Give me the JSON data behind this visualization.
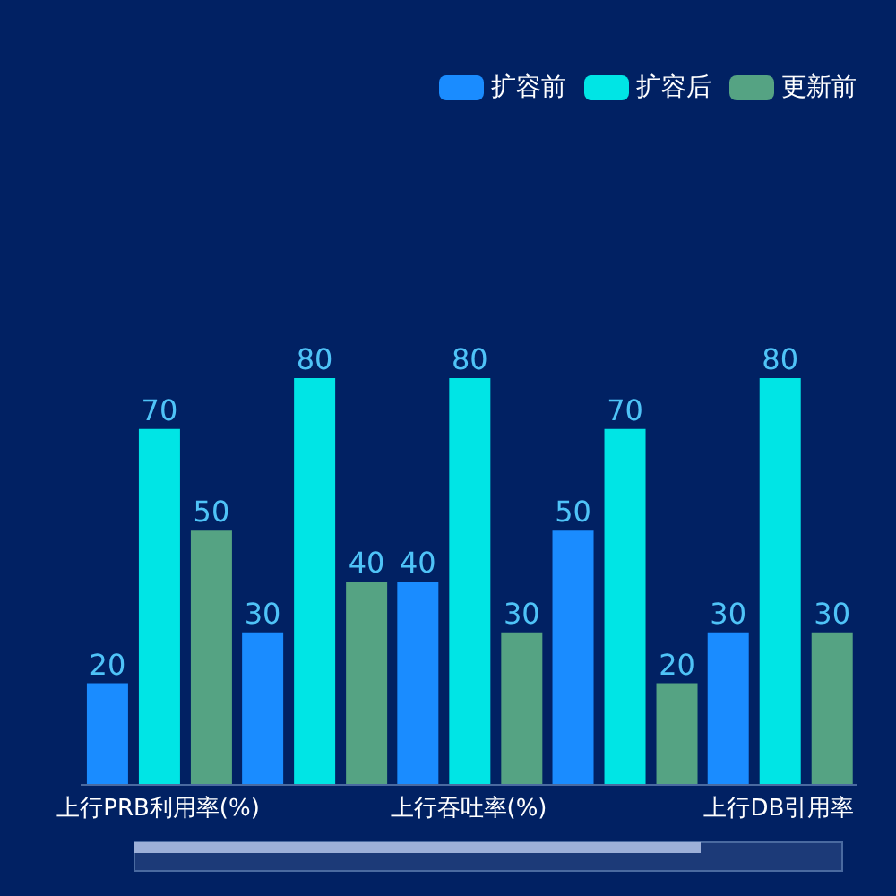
{
  "chart_data": {
    "type": "bar",
    "categories": [
      "上行PRB利用率(%)",
      null,
      "上行吞吐率(%)",
      null,
      "上行DB引用率"
    ],
    "series": [
      {
        "name": "扩容前",
        "color": "#1a8cff",
        "values": [
          20,
          30,
          40,
          50,
          30
        ]
      },
      {
        "name": "扩容后",
        "color": "#00e5e5",
        "values": [
          70,
          80,
          80,
          70,
          80
        ]
      },
      {
        "name": "更新前",
        "color": "#55a383",
        "values": [
          50,
          40,
          30,
          20,
          30
        ]
      }
    ],
    "data_labels": true,
    "legend": "top right",
    "grid": false,
    "tick_labels": "x"
  }
}
